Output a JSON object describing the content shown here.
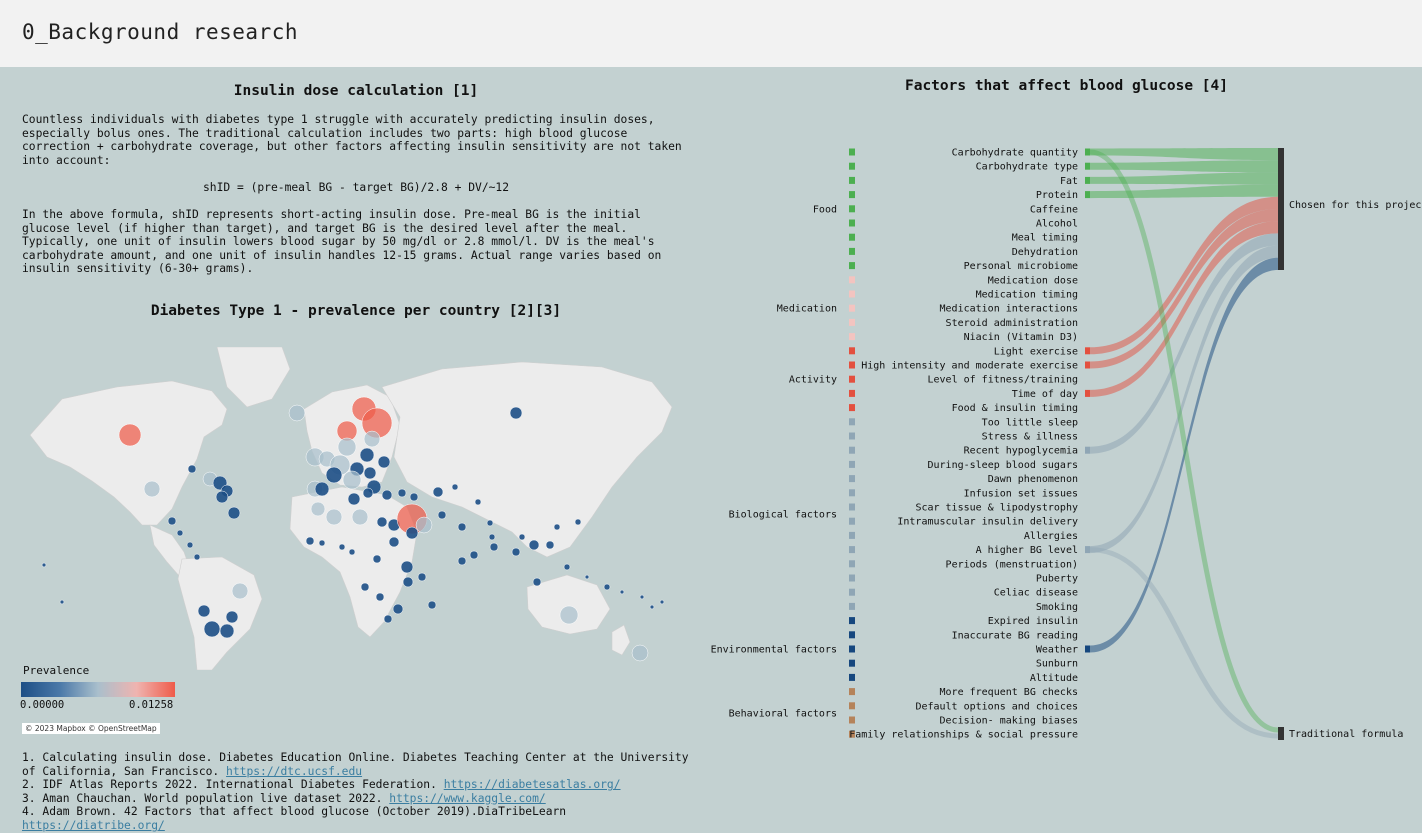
{
  "header": {
    "title": "0_Background research"
  },
  "insulin": {
    "title": "Insulin dose calculation [1]",
    "p1": "Countless individuals with diabetes type 1 struggle with accurately predicting insulin doses, especially bolus ones. The traditional calculation includes two parts: high blood glucose correction + carbohydrate coverage, but other factors affecting insulin sensitivity are not taken into account:",
    "formula": "shID = (pre-meal BG - target BG)/2.8 + DV/~12",
    "p2": "In the above formula, shID represents short-acting insulin dose. Pre-meal BG is the initial glucose level (if higher than target), and target BG is the desired level after the meal. Typically, one unit of insulin lowers blood sugar by 50 mg/dl or 2.8 mmol/l. DV is the meal's carbohydrate amount, and one unit of insulin handles 12-15 grams. Actual range varies based on insulin sensitivity (6-30+ grams)."
  },
  "map": {
    "title": "Diabetes Type 1 - prevalence per country [2][3]",
    "legend_title": "Prevalence",
    "legend_min": "0.00000",
    "legend_max": "0.01258",
    "attribution": "© 2023 Mapbox © OpenStreetMap",
    "colors": {
      "low": "#1d4f86",
      "mid": "#a9bfcc",
      "high": "#ef5b4a"
    }
  },
  "references": [
    {
      "text": "1. Calculating insulin dose. Diabetes Education Online. Diabetes Teaching Center at the University of California, San Francisco. ",
      "link": "https://dtc.ucsf.edu"
    },
    {
      "text": "2. IDF Atlas Reports 2022. International Diabetes Federation. ",
      "link": "https://diabetesatlas.org/"
    },
    {
      "text": "3. Aman Chauchan. World population live dataset 2022. ",
      "link": "https://www.kaggle.com/"
    },
    {
      "text": "4. Adam Brown. 42 Factors that affect blood glucose (October 2019).DiaTribeLearn ",
      "link": "https://diatribe.org/"
    }
  ],
  "sankey": {
    "title": "Factors that affect blood glucose [4]",
    "groups": [
      {
        "label": "Food",
        "color": "#4caf50"
      },
      {
        "label": "Medication",
        "color": "#f3c4c0"
      },
      {
        "label": "Activity",
        "color": "#e3503f"
      },
      {
        "label": "Biological factors",
        "color": "#8fa6b5"
      },
      {
        "label": "Environmental factors",
        "color": "#16477e"
      },
      {
        "label": "Behavioral factors",
        "color": "#b5835a"
      }
    ],
    "factors": [
      {
        "label": "Carbohydrate quantity",
        "group": 0,
        "chosen": true
      },
      {
        "label": "Carbohydrate type",
        "group": 0,
        "chosen": true
      },
      {
        "label": "Fat",
        "group": 0,
        "chosen": true
      },
      {
        "label": "Protein",
        "group": 0,
        "chosen": true
      },
      {
        "label": "Caffeine",
        "group": 0
      },
      {
        "label": "Alcohol",
        "group": 0
      },
      {
        "label": "Meal timing",
        "group": 0
      },
      {
        "label": "Dehydration",
        "group": 0
      },
      {
        "label": "Personal microbiome",
        "group": 0
      },
      {
        "label": "Medication dose",
        "group": 1
      },
      {
        "label": "Medication timing",
        "group": 1
      },
      {
        "label": "Medication interactions",
        "group": 1
      },
      {
        "label": "Steroid administration",
        "group": 1
      },
      {
        "label": "Niacin (Vitamin D3)",
        "group": 1
      },
      {
        "label": "Light exercise",
        "group": 2,
        "chosen": true
      },
      {
        "label": "High intensity and moderate exercise",
        "group": 2,
        "chosen": true
      },
      {
        "label": "Level of fitness/training",
        "group": 2
      },
      {
        "label": "Time of day",
        "group": 2,
        "chosen": true
      },
      {
        "label": "Food & insulin timing",
        "group": 2
      },
      {
        "label": "Too little sleep",
        "group": 3
      },
      {
        "label": "Stress & illness",
        "group": 3
      },
      {
        "label": "Recent hypoglycemia",
        "group": 3,
        "chosen": true
      },
      {
        "label": "During-sleep blood sugars",
        "group": 3
      },
      {
        "label": "Dawn phenomenon",
        "group": 3
      },
      {
        "label": "Infusion set issues",
        "group": 3
      },
      {
        "label": "Scar tissue & lipodystrophy",
        "group": 3
      },
      {
        "label": "Intramuscular insulin delivery",
        "group": 3
      },
      {
        "label": "Allergies",
        "group": 3
      },
      {
        "label": "A higher BG level",
        "group": 3,
        "chosen": true
      },
      {
        "label": "Periods (menstruation)",
        "group": 3
      },
      {
        "label": "Puberty",
        "group": 3
      },
      {
        "label": "Celiac disease",
        "group": 3
      },
      {
        "label": "Smoking",
        "group": 3
      },
      {
        "label": "Expired insulin",
        "group": 4
      },
      {
        "label": "Inaccurate BG reading",
        "group": 4
      },
      {
        "label": "Weather",
        "group": 4,
        "chosen": true
      },
      {
        "label": "Sunburn",
        "group": 4
      },
      {
        "label": "Altitude",
        "group": 4
      },
      {
        "label": "More frequent BG checks",
        "group": 5
      },
      {
        "label": "Default options and choices",
        "group": 5
      },
      {
        "label": "Decision- making biases",
        "group": 5
      },
      {
        "label": "Family relationships & social pressure",
        "group": 5
      }
    ],
    "targets": {
      "chosen": "Chosen for this project",
      "traditional": "Traditional formula"
    },
    "traditional_sources": [
      0,
      28
    ]
  }
}
